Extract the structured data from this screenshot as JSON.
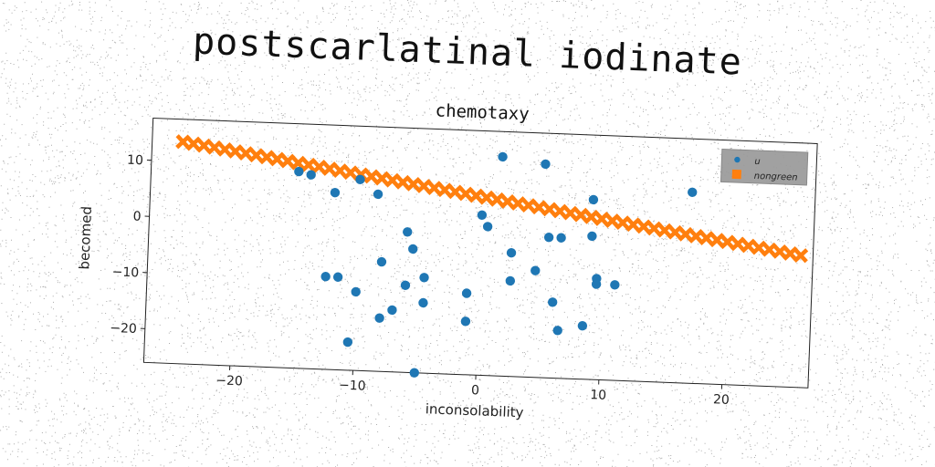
{
  "suptitle": "postscarlatinal iodinate",
  "chart_data": {
    "type": "scatter",
    "title": "chemotaxy",
    "xlabel": "inconsolability",
    "ylabel": "becomed",
    "xlim": [
      -27,
      27
    ],
    "ylim": [
      -26,
      17.5
    ],
    "xticks": [
      -20,
      -10,
      0,
      10,
      20
    ],
    "yticks": [
      -20,
      -10,
      0,
      10
    ],
    "xtick_labels": [
      "−20",
      "−10",
      "0",
      "10",
      "20"
    ],
    "ytick_labels": [
      "−20",
      "−10",
      "0",
      "10"
    ],
    "grid": false,
    "legend": {
      "placement": "top-right",
      "background": "#999999",
      "entries": [
        "u",
        "nongreen"
      ]
    },
    "series": [
      {
        "name": "u",
        "color": "#1f77b4",
        "marker": "circle",
        "points": [
          [
            -15,
            9
          ],
          [
            -14,
            8.5
          ],
          [
            -10,
            8
          ],
          [
            -12,
            5.5
          ],
          [
            -8.5,
            5.5
          ],
          [
            1.5,
            13
          ],
          [
            5,
            12
          ],
          [
            17,
            8
          ],
          [
            9,
            6
          ],
          [
            -6,
            -1
          ],
          [
            -5.5,
            -4
          ],
          [
            -8,
            -6.5
          ],
          [
            -12.5,
            -9.5
          ],
          [
            -11.5,
            -9.5
          ],
          [
            -6,
            -10.5
          ],
          [
            -4.5,
            -9
          ],
          [
            -10,
            -12
          ],
          [
            -4.5,
            -13.5
          ],
          [
            -7,
            -15
          ],
          [
            -8,
            -16.5
          ],
          [
            -10.5,
            -21
          ],
          [
            -5,
            -26
          ],
          [
            -1,
            -11.5
          ],
          [
            -1,
            -16.5
          ],
          [
            0,
            2.5
          ],
          [
            0.5,
            0.5
          ],
          [
            2.5,
            -4
          ],
          [
            2.5,
            -9
          ],
          [
            4.5,
            -7
          ],
          [
            5.5,
            -1
          ],
          [
            6.5,
            -1
          ],
          [
            6,
            -12.5
          ],
          [
            6.5,
            -17.5
          ],
          [
            8.5,
            -16.5
          ],
          [
            9,
            -0.5
          ],
          [
            9.5,
            -8
          ],
          [
            9.5,
            -9
          ],
          [
            11,
            -9
          ]
        ]
      },
      {
        "name": "nongreen",
        "color": "#ff7f0e",
        "marker": "x",
        "line": {
          "x_start": -24.5,
          "y_start": 13.5,
          "x_end": 26,
          "y_end": -2.5,
          "count": 60
        }
      }
    ]
  }
}
